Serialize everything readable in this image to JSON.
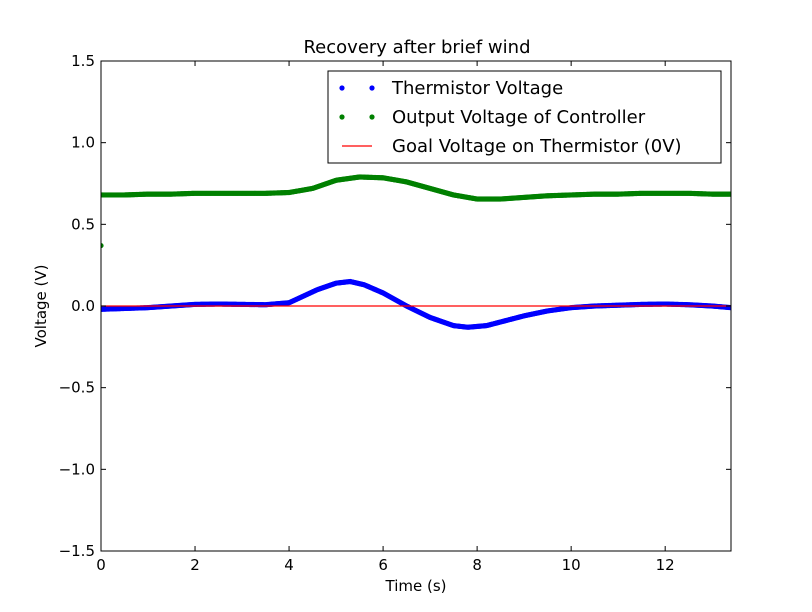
{
  "chart_data": {
    "type": "line",
    "title": "Recovery after brief wind",
    "xlabel": "Time (s)",
    "ylabel": "Voltage (V)",
    "xlim": [
      0,
      13.4
    ],
    "ylim": [
      -1.5,
      1.5
    ],
    "xticks": [
      0,
      2,
      4,
      6,
      8,
      10,
      12
    ],
    "yticks": [
      -1.5,
      -1.0,
      -0.5,
      0.0,
      0.5,
      1.0,
      1.5
    ],
    "xtick_labels": [
      "0",
      "2",
      "4",
      "6",
      "8",
      "10",
      "12"
    ],
    "ytick_labels": [
      "−1.5",
      "−1.0",
      "−0.5",
      "0.0",
      "0.5",
      "1.0",
      "1.5"
    ],
    "grid": false,
    "legend_position": "top-right",
    "series": [
      {
        "name": "Thermistor Voltage",
        "style": "dots",
        "color": "#0000ff",
        "x": [
          0,
          0.5,
          1,
          1.5,
          2,
          2.5,
          3,
          3.5,
          4,
          4.3,
          4.6,
          5,
          5.3,
          5.6,
          6,
          6.5,
          7,
          7.5,
          7.8,
          8.2,
          8.6,
          9,
          9.5,
          10,
          10.5,
          11,
          11.5,
          12,
          12.5,
          13,
          13.4
        ],
        "y": [
          -0.02,
          -0.015,
          -0.01,
          0.0,
          0.01,
          0.012,
          0.01,
          0.008,
          0.02,
          0.06,
          0.1,
          0.14,
          0.15,
          0.13,
          0.08,
          0.0,
          -0.07,
          -0.12,
          -0.13,
          -0.12,
          -0.09,
          -0.06,
          -0.03,
          -0.01,
          0.0,
          0.005,
          0.01,
          0.012,
          0.008,
          0.0,
          -0.01
        ]
      },
      {
        "name": "Output Voltage of Controller",
        "style": "dots",
        "color": "#008000",
        "x": [
          0,
          0.5,
          1,
          1.5,
          2,
          2.5,
          3,
          3.5,
          4,
          4.5,
          5,
          5.5,
          6,
          6.5,
          7,
          7.5,
          8,
          8.5,
          9,
          9.5,
          10,
          10.5,
          11,
          11.5,
          12,
          12.5,
          13,
          13.4
        ],
        "y": [
          0.68,
          0.68,
          0.685,
          0.685,
          0.69,
          0.69,
          0.69,
          0.69,
          0.695,
          0.72,
          0.77,
          0.79,
          0.785,
          0.76,
          0.72,
          0.68,
          0.655,
          0.655,
          0.665,
          0.675,
          0.68,
          0.685,
          0.685,
          0.69,
          0.69,
          0.69,
          0.685,
          0.685
        ],
        "extra_points": [
          {
            "x": 0.0,
            "y": 0.37
          }
        ]
      },
      {
        "name": "Goal Voltage on Thermistor (0V)",
        "style": "line",
        "color": "#ff0000",
        "x": [
          0,
          13.4
        ],
        "y": [
          0,
          0
        ]
      }
    ]
  }
}
